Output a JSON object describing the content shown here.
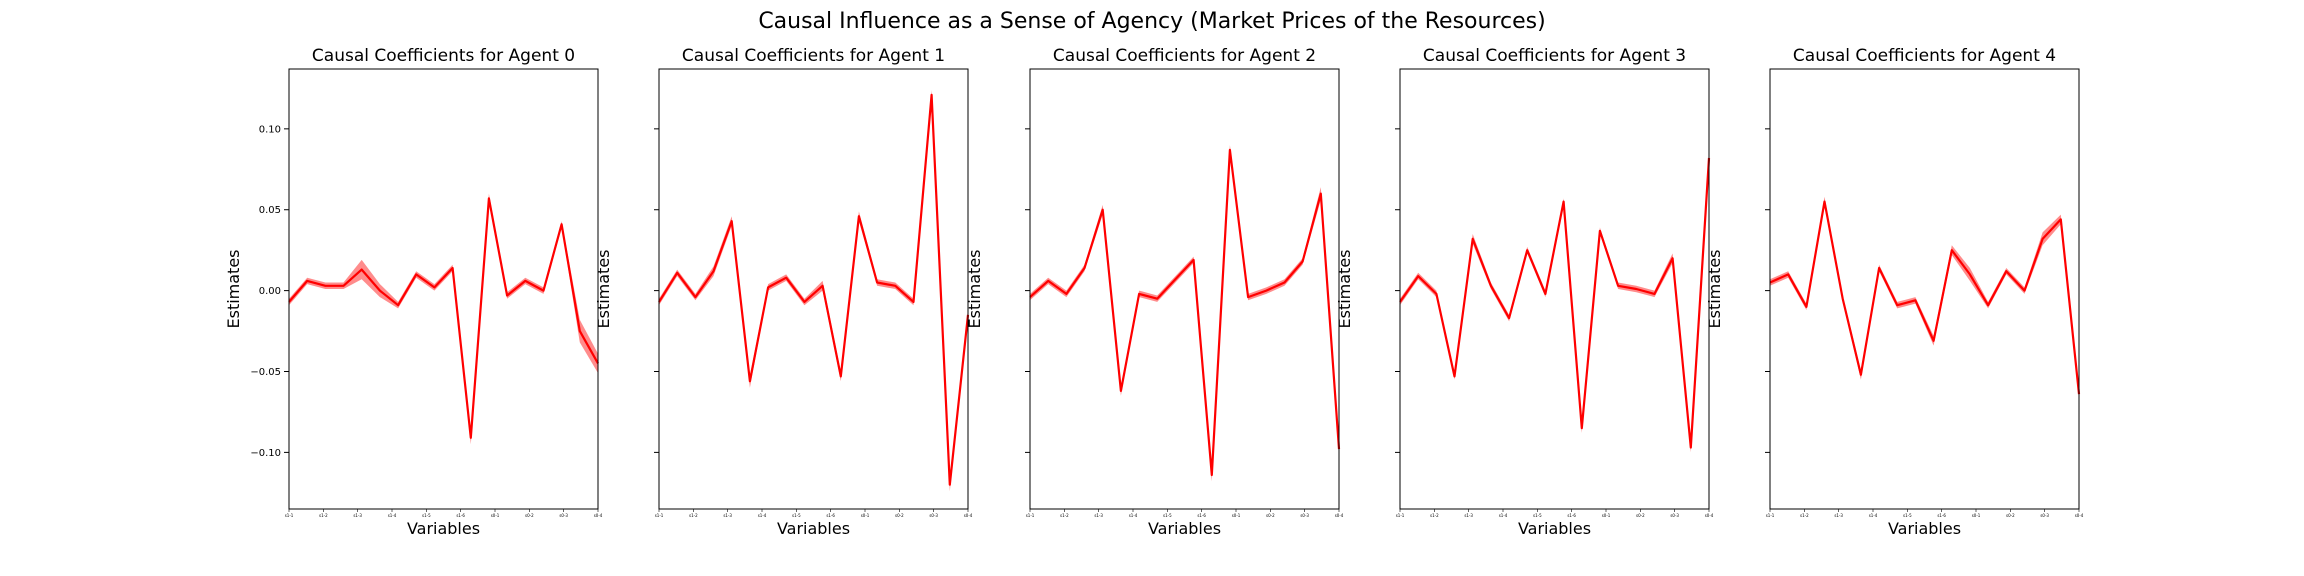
{
  "figure": {
    "title": "Causal Influence as a Sense of Agency (Market Prices of the Resources)",
    "colors": {
      "line": "#ff0000",
      "band": "#ff0000",
      "axes": "#000000"
    }
  },
  "chart_data": [
    {
      "type": "line",
      "title": "Causal Coefficients for Agent 0",
      "xlabel": "Variables",
      "ylabel": "Estimates",
      "ylim": [
        -0.135,
        0.137
      ],
      "yticks": [
        "0.10",
        "0.05",
        "0.00",
        "−0.05",
        "−0.10"
      ],
      "ytick_values": [
        0.1,
        0.05,
        0.0,
        -0.05,
        -0.1
      ],
      "xtick_labels": [
        "s1-1",
        "s1-2",
        "s1-3",
        "s1-4",
        "s1-5",
        "s1-6",
        "s0-1",
        "s0-2",
        "s0-3",
        "s0-4"
      ],
      "y": [
        -0.007,
        0.006,
        0.003,
        0.003,
        0.013,
        0.0,
        -0.009,
        0.01,
        0.002,
        0.014,
        -0.091,
        0.057,
        -0.003,
        0.006,
        0.0,
        0.041,
        -0.025,
        -0.045
      ],
      "band": [
        0.002,
        0.002,
        0.002,
        0.002,
        0.006,
        0.004,
        0.002,
        0.002,
        0.002,
        0.002,
        0.004,
        0.003,
        0.002,
        0.002,
        0.002,
        0.002,
        0.007,
        0.006
      ]
    },
    {
      "type": "line",
      "title": "Causal Coefficients for Agent 1",
      "xlabel": "Variables",
      "ylabel": "Estimates",
      "ylim": [
        -0.135,
        0.137
      ],
      "yticks": [],
      "ytick_values": [
        0.1,
        0.05,
        0.0,
        -0.05,
        -0.1
      ],
      "xtick_labels": [
        "s1-1",
        "s1-2",
        "s1-3",
        "s1-4",
        "s1-5",
        "s1-6",
        "s0-1",
        "s0-2",
        "s0-3",
        "s0-4"
      ],
      "y": [
        -0.007,
        0.011,
        -0.004,
        0.012,
        0.043,
        -0.056,
        0.002,
        0.008,
        -0.007,
        0.003,
        -0.053,
        0.046,
        0.005,
        0.003,
        -0.007,
        0.121,
        -0.12,
        -0.015
      ],
      "band": [
        0.002,
        0.002,
        0.002,
        0.003,
        0.003,
        0.004,
        0.002,
        0.002,
        0.002,
        0.003,
        0.003,
        0.003,
        0.002,
        0.002,
        0.002,
        0.003,
        0.004,
        0.004
      ]
    },
    {
      "type": "line",
      "title": "Causal Coefficients for Agent 2",
      "xlabel": "Variables",
      "ylabel": "Estimates",
      "ylim": [
        -0.135,
        0.137
      ],
      "yticks": [],
      "ytick_values": [
        0.1,
        0.05,
        0.0,
        -0.05,
        -0.1
      ],
      "xtick_labels": [
        "s1-1",
        "s1-2",
        "s1-3",
        "s1-4",
        "s1-5",
        "s1-6",
        "s0-1",
        "s0-2",
        "s0-3",
        "s0-4"
      ],
      "y": [
        -0.004,
        0.006,
        -0.002,
        0.014,
        0.05,
        -0.062,
        -0.002,
        -0.005,
        0.007,
        0.019,
        -0.114,
        0.087,
        -0.004,
        0.0,
        0.005,
        0.018,
        0.06,
        -0.098
      ],
      "band": [
        0.002,
        0.002,
        0.002,
        0.002,
        0.003,
        0.003,
        0.002,
        0.002,
        0.002,
        0.002,
        0.004,
        0.003,
        0.002,
        0.002,
        0.002,
        0.002,
        0.004,
        0.003
      ]
    },
    {
      "type": "line",
      "title": "Causal Coefficients for Agent 3",
      "xlabel": "Variables",
      "ylabel": "Estimates",
      "ylim": [
        -0.135,
        0.137
      ],
      "yticks": [],
      "ytick_values": [
        0.1,
        0.05,
        0.0,
        -0.05,
        -0.1
      ],
      "xtick_labels": [
        "s1-1",
        "s1-2",
        "s1-3",
        "s1-4",
        "s1-5",
        "s1-6",
        "s0-1",
        "s0-2",
        "s0-3",
        "s0-4"
      ],
      "y": [
        -0.007,
        0.009,
        -0.002,
        -0.053,
        0.032,
        0.003,
        -0.017,
        0.025,
        -0.002,
        0.055,
        -0.085,
        0.037,
        0.003,
        0.001,
        -0.002,
        0.02,
        -0.097,
        0.082
      ],
      "band": [
        0.002,
        0.002,
        0.002,
        0.002,
        0.003,
        0.002,
        0.002,
        0.002,
        0.002,
        0.002,
        0.003,
        0.002,
        0.002,
        0.002,
        0.002,
        0.003,
        0.003,
        0.003
      ]
    },
    {
      "type": "line",
      "title": "Causal Coefficients for Agent 4",
      "xlabel": "Variables",
      "ylabel": "Estimates",
      "ylim": [
        -0.135,
        0.137
      ],
      "yticks": [],
      "ytick_values": [
        0.1,
        0.05,
        0.0,
        -0.05,
        -0.1
      ],
      "xtick_labels": [
        "s1-1",
        "s1-2",
        "s1-3",
        "s1-4",
        "s1-5",
        "s1-6",
        "s0-1",
        "s0-2",
        "s0-3",
        "s0-4"
      ],
      "y": [
        0.005,
        0.01,
        -0.01,
        0.055,
        -0.005,
        -0.052,
        0.014,
        -0.009,
        -0.006,
        -0.031,
        0.025,
        0.01,
        -0.009,
        0.012,
        0.0,
        0.032,
        0.044,
        -0.064
      ],
      "band": [
        0.002,
        0.002,
        0.002,
        0.003,
        0.002,
        0.003,
        0.002,
        0.002,
        0.002,
        0.003,
        0.003,
        0.004,
        0.002,
        0.002,
        0.002,
        0.004,
        0.003,
        0.003
      ]
    }
  ]
}
